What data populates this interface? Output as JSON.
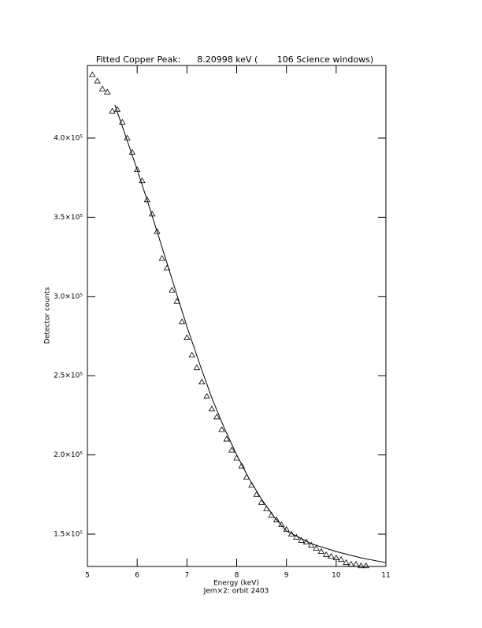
{
  "chart_data": {
    "type": "scatter",
    "title": "Fitted Copper Peak:      8.20998 keV (       106 Science windows)",
    "x_label": "Energy (keV)",
    "subtitle": "Jem×2: orbit 2403",
    "y_label": "Detector counts",
    "xlim": [
      5,
      11
    ],
    "ylim": [
      129600,
      445800
    ],
    "xticks": [
      5,
      6,
      7,
      8,
      9,
      10,
      11
    ],
    "yticks": [
      {
        "value": 150000,
        "label": "1.5×10⁵"
      },
      {
        "value": 200000,
        "label": "2.0×10⁵"
      },
      {
        "value": 250000,
        "label": "2.5×10⁵"
      },
      {
        "value": 300000,
        "label": "3.0×10⁵"
      },
      {
        "value": 350000,
        "label": "3.5×10⁵"
      },
      {
        "value": 400000,
        "label": "4.0×10⁵"
      }
    ],
    "color": "#000000",
    "series": [
      {
        "kind": "points",
        "x": [
          5.1,
          5.2,
          5.3,
          5.4,
          5.5,
          5.6,
          5.7,
          5.8,
          5.9,
          6.0,
          6.1,
          6.2,
          6.3,
          6.4,
          6.5,
          6.6,
          6.7,
          6.8,
          6.9,
          7.0,
          7.1,
          7.2,
          7.3,
          7.4,
          7.5,
          7.6,
          7.7,
          7.8,
          7.9,
          8.0,
          8.1,
          8.2,
          8.3,
          8.4,
          8.5,
          8.6,
          8.7,
          8.8,
          8.9,
          9.0,
          9.1,
          9.2,
          9.3,
          9.4,
          9.5,
          9.6,
          9.7,
          9.8,
          9.9,
          10.0,
          10.1,
          10.2,
          10.3,
          10.4,
          10.5,
          10.6
        ],
        "values": [
          440000,
          436000,
          431000,
          429000,
          417000,
          418000,
          410000,
          400000,
          391000,
          380000,
          373000,
          361000,
          352000,
          341000,
          324000,
          318000,
          304000,
          297000,
          284000,
          274000,
          263000,
          255000,
          246000,
          237000,
          229000,
          224000,
          216000,
          210000,
          203000,
          198000,
          193000,
          186000,
          181000,
          175000,
          170000,
          166000,
          162000,
          159000,
          156000,
          153000,
          150000,
          148000,
          146000,
          145000,
          143000,
          141000,
          139000,
          137000,
          136000,
          135000,
          134000,
          132000,
          131000,
          131000,
          130000,
          130000
        ]
      },
      {
        "kind": "line",
        "x": [
          5.55,
          5.75,
          6.0,
          6.25,
          6.5,
          6.75,
          7.0,
          7.25,
          7.5,
          7.75,
          8.0,
          8.25,
          8.5,
          8.75,
          9.0,
          9.5,
          10.0,
          10.5,
          11.0
        ],
        "values": [
          421000,
          403000,
          380000,
          356000,
          331000,
          306000,
          281000,
          258000,
          236000,
          217000,
          200000,
          185000,
          172000,
          161000,
          152000,
          144000,
          139000,
          135000,
          132000
        ]
      }
    ]
  }
}
